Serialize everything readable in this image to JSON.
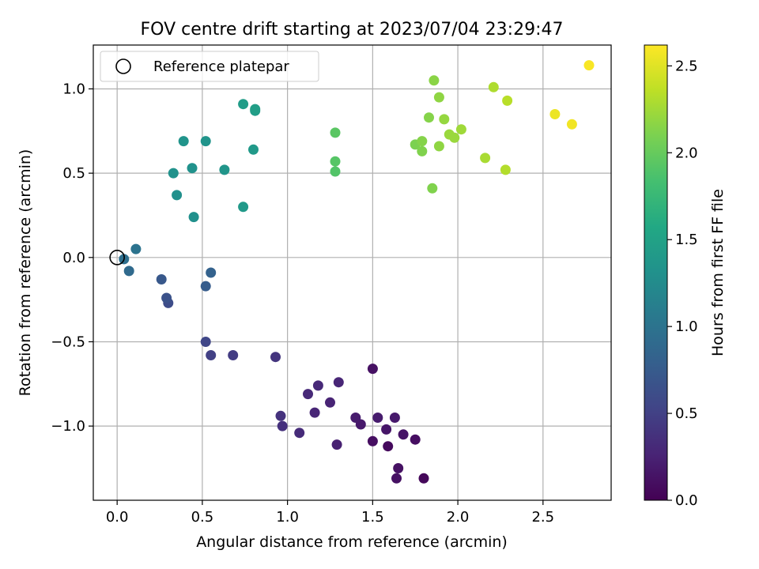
{
  "chart_data": {
    "type": "scatter",
    "title": "FOV centre drift starting at 2023/07/04 23:29:47",
    "xlabel": "Angular distance from reference (arcmin)",
    "ylabel": "Rotation from reference (arcmin)",
    "xlim": [
      -0.14,
      2.9
    ],
    "ylim": [
      -1.44,
      1.26
    ],
    "xticks": [
      0.0,
      0.5,
      1.0,
      1.5,
      2.0,
      2.5
    ],
    "xtick_labels": [
      "0.0",
      "0.5",
      "1.0",
      "1.5",
      "2.0",
      "2.5"
    ],
    "yticks": [
      -1.0,
      -0.5,
      0.0,
      0.5,
      1.0
    ],
    "ytick_labels": [
      "−1.0",
      "−0.5",
      "0.0",
      "0.5",
      "1.0"
    ],
    "grid": true,
    "legend": {
      "position": "upper-left",
      "entries": [
        "Reference platepar"
      ]
    },
    "reference_point": {
      "x": 0.0,
      "y": 0.0,
      "marker": "open-circle",
      "color": "#000000"
    },
    "colorbar": {
      "label": "Hours from first FF file",
      "colormap": "viridis",
      "range": [
        0.0,
        2.62
      ],
      "ticks": [
        0.0,
        0.5,
        1.0,
        1.5,
        2.0,
        2.5
      ],
      "tick_labels": [
        "0.0",
        "0.5",
        "1.0",
        "1.5",
        "2.0",
        "2.5"
      ]
    },
    "points": [
      {
        "x": 1.8,
        "y": -1.31,
        "t": 0.05
      },
      {
        "x": 1.64,
        "y": -1.31,
        "t": 0.12
      },
      {
        "x": 1.65,
        "y": -1.25,
        "t": 0.12
      },
      {
        "x": 1.59,
        "y": -1.12,
        "t": 0.07
      },
      {
        "x": 1.5,
        "y": -1.09,
        "t": 0.1
      },
      {
        "x": 1.75,
        "y": -1.08,
        "t": 0.1
      },
      {
        "x": 1.68,
        "y": -1.05,
        "t": 0.14
      },
      {
        "x": 1.58,
        "y": -1.02,
        "t": 0.16
      },
      {
        "x": 1.63,
        "y": -0.95,
        "t": 0.18
      },
      {
        "x": 1.53,
        "y": -0.95,
        "t": 0.2
      },
      {
        "x": 1.43,
        "y": -0.99,
        "t": 0.18
      },
      {
        "x": 1.4,
        "y": -0.95,
        "t": 0.2
      },
      {
        "x": 1.5,
        "y": -0.66,
        "t": 0.12
      },
      {
        "x": 1.29,
        "y": -1.11,
        "t": 0.24
      },
      {
        "x": 1.25,
        "y": -0.86,
        "t": 0.26
      },
      {
        "x": 1.16,
        "y": -0.92,
        "t": 0.28
      },
      {
        "x": 1.12,
        "y": -0.81,
        "t": 0.3
      },
      {
        "x": 1.18,
        "y": -0.76,
        "t": 0.3
      },
      {
        "x": 1.3,
        "y": -0.74,
        "t": 0.28
      },
      {
        "x": 1.07,
        "y": -1.04,
        "t": 0.32
      },
      {
        "x": 0.97,
        "y": -1.0,
        "t": 0.36
      },
      {
        "x": 0.96,
        "y": -0.94,
        "t": 0.38
      },
      {
        "x": 0.93,
        "y": -0.59,
        "t": 0.4
      },
      {
        "x": 0.68,
        "y": -0.58,
        "t": 0.46
      },
      {
        "x": 0.55,
        "y": -0.58,
        "t": 0.5
      },
      {
        "x": 0.52,
        "y": -0.5,
        "t": 0.55
      },
      {
        "x": 0.3,
        "y": -0.27,
        "t": 0.6
      },
      {
        "x": 0.29,
        "y": -0.24,
        "t": 0.66
      },
      {
        "x": 0.26,
        "y": -0.13,
        "t": 0.72
      },
      {
        "x": 0.52,
        "y": -0.17,
        "t": 0.76
      },
      {
        "x": 0.55,
        "y": -0.09,
        "t": 0.82
      },
      {
        "x": 0.07,
        "y": -0.08,
        "t": 0.9
      },
      {
        "x": 0.04,
        "y": -0.01,
        "t": 0.95
      },
      {
        "x": 0.11,
        "y": 0.05,
        "t": 1.0
      },
      {
        "x": 0.45,
        "y": 0.24,
        "t": 1.3
      },
      {
        "x": 0.35,
        "y": 0.37,
        "t": 1.3
      },
      {
        "x": 0.33,
        "y": 0.5,
        "t": 1.32
      },
      {
        "x": 0.44,
        "y": 0.53,
        "t": 1.32
      },
      {
        "x": 0.39,
        "y": 0.69,
        "t": 1.34
      },
      {
        "x": 0.52,
        "y": 0.69,
        "t": 1.34
      },
      {
        "x": 0.63,
        "y": 0.52,
        "t": 1.36
      },
      {
        "x": 0.74,
        "y": 0.3,
        "t": 1.4
      },
      {
        "x": 0.8,
        "y": 0.64,
        "t": 1.4
      },
      {
        "x": 0.74,
        "y": 0.91,
        "t": 1.44
      },
      {
        "x": 0.81,
        "y": 0.87,
        "t": 1.44
      },
      {
        "x": 0.81,
        "y": 0.88,
        "t": 1.46
      },
      {
        "x": 1.28,
        "y": 0.51,
        "t": 1.9
      },
      {
        "x": 1.28,
        "y": 0.57,
        "t": 1.92
      },
      {
        "x": 1.28,
        "y": 0.74,
        "t": 1.94
      },
      {
        "x": 1.75,
        "y": 0.67,
        "t": 2.1
      },
      {
        "x": 1.79,
        "y": 0.63,
        "t": 2.12
      },
      {
        "x": 1.79,
        "y": 0.69,
        "t": 2.14
      },
      {
        "x": 1.85,
        "y": 0.41,
        "t": 2.12
      },
      {
        "x": 1.83,
        "y": 0.83,
        "t": 2.14
      },
      {
        "x": 1.86,
        "y": 1.05,
        "t": 2.16
      },
      {
        "x": 1.89,
        "y": 0.95,
        "t": 2.18
      },
      {
        "x": 1.89,
        "y": 0.66,
        "t": 2.18
      },
      {
        "x": 1.92,
        "y": 0.82,
        "t": 2.2
      },
      {
        "x": 1.95,
        "y": 0.73,
        "t": 2.22
      },
      {
        "x": 1.98,
        "y": 0.71,
        "t": 2.22
      },
      {
        "x": 2.02,
        "y": 0.76,
        "t": 2.24
      },
      {
        "x": 2.16,
        "y": 0.59,
        "t": 2.28
      },
      {
        "x": 2.21,
        "y": 1.01,
        "t": 2.3
      },
      {
        "x": 2.28,
        "y": 0.52,
        "t": 2.32
      },
      {
        "x": 2.29,
        "y": 0.93,
        "t": 2.34
      },
      {
        "x": 2.57,
        "y": 0.85,
        "t": 2.55
      },
      {
        "x": 2.67,
        "y": 0.79,
        "t": 2.57
      },
      {
        "x": 2.77,
        "y": 1.14,
        "t": 2.6
      }
    ]
  }
}
